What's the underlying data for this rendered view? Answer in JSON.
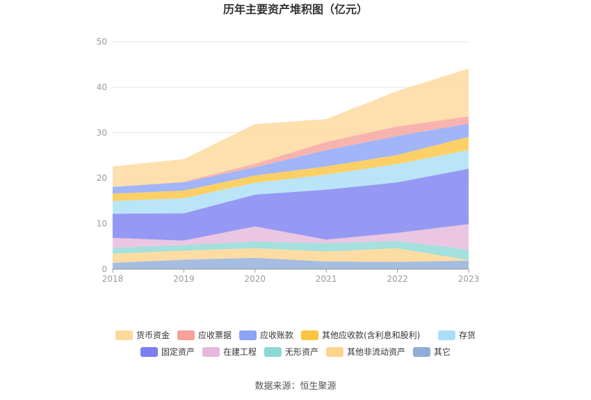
{
  "chart_data": {
    "type": "area",
    "stacked": true,
    "title": "历年主要资产堆积图（亿元）",
    "xlabel": "",
    "ylabel": "",
    "x": [
      "2018",
      "2019",
      "2020",
      "2021",
      "2022",
      "2023"
    ],
    "ylim": [
      0,
      50
    ],
    "yticks": [
      "0",
      "10",
      "20",
      "30",
      "40",
      "50"
    ],
    "grid": true,
    "legend_position": "bottom",
    "series": [
      {
        "name": "其它",
        "color": "#8fadd9",
        "values": [
          1.4,
          2.1,
          2.5,
          1.7,
          1.6,
          1.9
        ]
      },
      {
        "name": "其他非流动资产",
        "color": "#fdd38c",
        "values": [
          2.0,
          2.0,
          2.1,
          2.2,
          3.0,
          0.1
        ]
      },
      {
        "name": "无形资产",
        "color": "#8dd8d4",
        "values": [
          1.3,
          1.2,
          1.5,
          1.8,
          1.6,
          2.3
        ]
      },
      {
        "name": "在建工程",
        "color": "#e6b8db",
        "values": [
          2.2,
          1.0,
          3.3,
          0.8,
          1.8,
          5.6
        ]
      },
      {
        "name": "固定资产",
        "color": "#7b7ff0",
        "values": [
          5.3,
          6.0,
          7.0,
          11.0,
          11.1,
          12.2
        ]
      },
      {
        "name": "存货",
        "color": "#a9def6",
        "values": [
          2.8,
          3.3,
          2.6,
          3.3,
          4.0,
          4.1
        ]
      },
      {
        "name": "其他应收款(含利息和股利)",
        "color": "#fbc441",
        "values": [
          1.6,
          1.7,
          1.6,
          1.8,
          2.0,
          2.9
        ]
      },
      {
        "name": "应收账款",
        "color": "#8aa3f6",
        "values": [
          1.5,
          1.8,
          1.8,
          3.6,
          4.2,
          2.9
        ]
      },
      {
        "name": "应收票据",
        "color": "#f7a09a",
        "values": [
          0.0,
          0.1,
          0.8,
          1.8,
          2.1,
          1.6
        ]
      },
      {
        "name": "货币资金",
        "color": "#fcd89a",
        "values": [
          4.5,
          5.0,
          8.7,
          5.0,
          7.8,
          10.5
        ]
      }
    ],
    "legend": [
      "货币资金",
      "应收票据",
      "应收账款",
      "其他应收款(含利息和股利)",
      "存货",
      "固定资产",
      "在建工程",
      "无形资产",
      "其他非流动资产",
      "其它"
    ]
  },
  "source": "数据来源：恒生聚源"
}
